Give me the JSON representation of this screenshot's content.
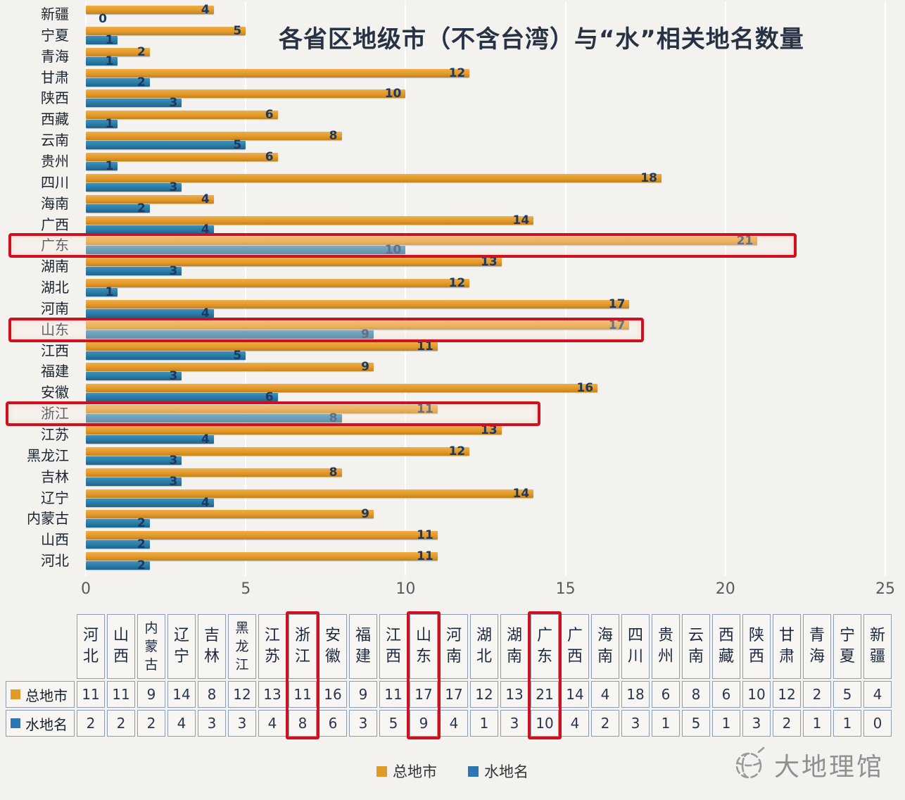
{
  "chart_data": {
    "type": "bar",
    "orientation": "horizontal",
    "title": "各省区地级市（不含台湾）与“水”相关地名数量",
    "categories": [
      "新疆",
      "宁夏",
      "青海",
      "甘肃",
      "陕西",
      "西藏",
      "云南",
      "贵州",
      "四川",
      "海南",
      "广西",
      "广东",
      "湖南",
      "湖北",
      "河南",
      "山东",
      "江西",
      "福建",
      "安徽",
      "浙江",
      "江苏",
      "黑龙江",
      "吉林",
      "辽宁",
      "内蒙古",
      "山西",
      "河北"
    ],
    "series": [
      {
        "name": "总地市",
        "color": "#E1992A",
        "values": [
          4,
          5,
          2,
          12,
          10,
          6,
          8,
          6,
          18,
          4,
          14,
          21,
          13,
          12,
          17,
          17,
          11,
          9,
          16,
          11,
          13,
          12,
          8,
          14,
          9,
          11,
          11
        ]
      },
      {
        "name": "水地名",
        "color": "#2A7AA6",
        "values": [
          0,
          1,
          1,
          2,
          3,
          1,
          5,
          1,
          3,
          2,
          4,
          10,
          3,
          1,
          4,
          9,
          5,
          3,
          6,
          8,
          4,
          3,
          3,
          4,
          2,
          2,
          2
        ]
      }
    ],
    "xlim": [
      0,
      25
    ],
    "x_ticks": [
      0,
      5,
      10,
      15,
      20,
      25
    ],
    "grid": true,
    "legend_position": "bottom"
  },
  "table": {
    "columns": [
      "河北",
      "山西",
      "内蒙古",
      "辽宁",
      "吉林",
      "黑龙江",
      "江苏",
      "浙江",
      "安徽",
      "福建",
      "江西",
      "山东",
      "河南",
      "湖北",
      "湖南",
      "广东",
      "广西",
      "海南",
      "四川",
      "贵州",
      "云南",
      "西藏",
      "陕西",
      "甘肃",
      "青海",
      "宁夏",
      "新疆"
    ],
    "rows": [
      {
        "label": "总地市",
        "color": "#E1992A",
        "values": [
          11,
          11,
          9,
          14,
          8,
          12,
          13,
          11,
          16,
          9,
          11,
          17,
          17,
          12,
          13,
          21,
          14,
          4,
          18,
          6,
          8,
          6,
          10,
          12,
          2,
          5,
          4
        ]
      },
      {
        "label": "水地名",
        "color": "#2E75B6",
        "values": [
          2,
          2,
          2,
          4,
          3,
          3,
          4,
          8,
          6,
          3,
          5,
          9,
          4,
          1,
          3,
          10,
          4,
          2,
          3,
          1,
          5,
          1,
          3,
          2,
          1,
          1,
          0
        ]
      }
    ]
  },
  "highlights": {
    "color": "#CF1020",
    "chart_categories": [
      "广东",
      "山东",
      "浙江"
    ],
    "table_columns": [
      "浙江",
      "山东",
      "广东"
    ]
  },
  "legend": {
    "items": [
      {
        "label": "总地市",
        "color": "#E1992A"
      },
      {
        "label": "水地名",
        "color": "#2E75B6"
      }
    ]
  },
  "watermark": {
    "text": "大地理馆"
  }
}
